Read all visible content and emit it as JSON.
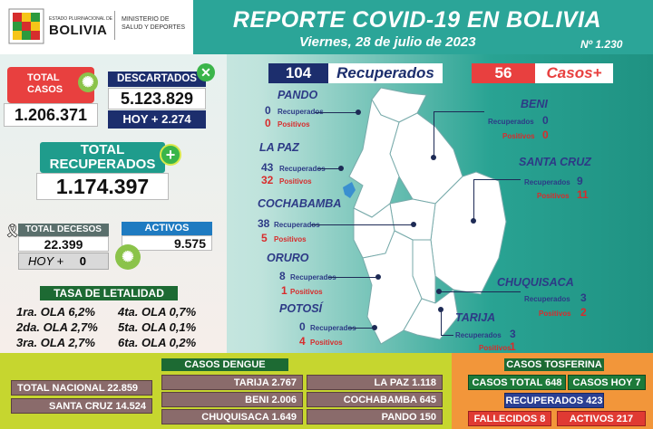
{
  "header": {
    "logo_line1": "ESTADO PLURINACIONAL DE",
    "logo_line2": "BOLIVIA",
    "ministry_line1": "MINISTERIO DE",
    "ministry_line2": "SALUD Y DEPORTES",
    "title": "REPORTE COVID-19 EN BOLIVIA",
    "date": "Viernes, 28 de julio de 2023",
    "report_number": "Nº 1.230"
  },
  "summary": {
    "total_casos_label": "TOTAL\nCASOS",
    "total_casos": "1.206.371",
    "descartados_label": "DESCARTADOS",
    "descartados": "5.123.829",
    "descartados_hoy": "HOY + 2.274",
    "total_recuperados_label1": "TOTAL",
    "total_recuperados_label2": "RECUPERADOS",
    "total_recuperados": "1.174.397",
    "decesos_label": "TOTAL DECESOS",
    "decesos": "22.399",
    "decesos_hoy_label": "HOY +",
    "decesos_hoy": "0",
    "activos_label": "ACTIVOS",
    "activos": "9.575"
  },
  "letalidad": {
    "title": "TASA DE LETALIDAD",
    "rows": [
      {
        "a": "1ra. OLA 6,2%",
        "b": "4ta. OLA 0,7%"
      },
      {
        "a": "2da. OLA 2,7%",
        "b": "5ta. OLA 0,1%"
      },
      {
        "a": "3ra. OLA 2,7%",
        "b": "6ta. OLA 0,2%"
      }
    ]
  },
  "daily": {
    "recuperados_num": "104",
    "recuperados_label": "Recuperados",
    "casos_num": "56",
    "casos_label": "Casos+"
  },
  "departments": {
    "recuperados_label": "Recuperados",
    "positivos_label": "Positivos",
    "pando": {
      "name": "PANDO",
      "r": "0",
      "p": "0"
    },
    "lapaz": {
      "name": "LA PAZ",
      "r": "43",
      "p": "32"
    },
    "cochabamba": {
      "name": "COCHABAMBA",
      "r": "38",
      "p": "5"
    },
    "oruro": {
      "name": "ORURO",
      "r": "8",
      "p": "1"
    },
    "potosi": {
      "name": "POTOSÍ",
      "r": "0",
      "p": "4"
    },
    "beni": {
      "name": "BENI",
      "r": "0",
      "p": "0"
    },
    "santacruz": {
      "name": "SANTA CRUZ",
      "r": "9",
      "p": "11"
    },
    "chuquisaca": {
      "name": "CHUQUISACA",
      "r": "3",
      "p": "2"
    },
    "tarija": {
      "name": "TARIJA",
      "r": "3",
      "p": "1"
    }
  },
  "footer": {
    "total_nacional": "TOTAL NACIONAL  22.859",
    "santa_cruz": "SANTA CRUZ  14.524",
    "dengue_title": "CASOS DENGUE",
    "dengue_tarija": "TARIJA  2.767",
    "dengue_beni": "BENI  2.006",
    "dengue_chuquisaca": "CHUQUISACA  1.649",
    "dengue_lapaz": "LA PAZ  1.118",
    "dengue_cochabamba": "COCHABAMBA  645",
    "dengue_pando": "PANDO  150",
    "tosferina_title": "CASOS TOSFERINA",
    "tos_total_label": "CASOS TOTAL",
    "tos_total": "648",
    "tos_hoy_label": "CASOS HOY",
    "tos_hoy": "7",
    "tos_recuperados_label": "RECUPERADOS",
    "tos_recuperados": "423",
    "tos_fallecidos_label": "FALLECIDOS",
    "tos_fallecidos": "8",
    "tos_activos_label": "ACTIVOS",
    "tos_activos": "217"
  },
  "colors": {
    "teal": "#2ba598",
    "red": "#e8403f",
    "navy": "#1c2e6d"
  }
}
